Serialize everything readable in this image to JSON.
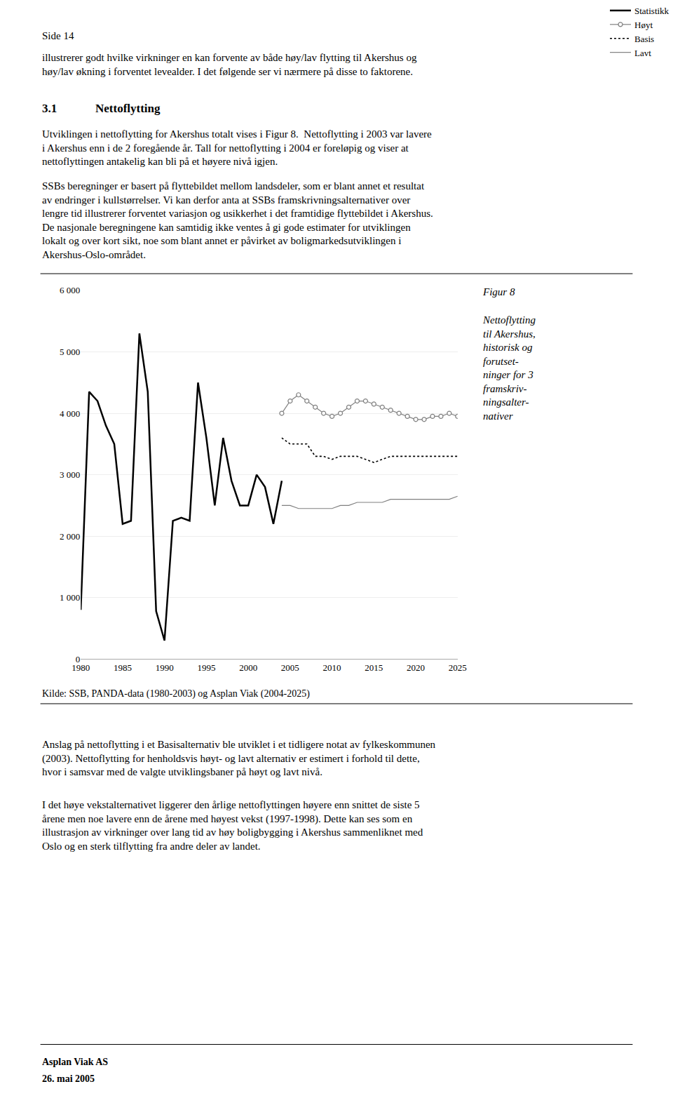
{
  "chart_data": {
    "type": "line",
    "series": [
      {
        "name": "Statistikk",
        "color": "#000000",
        "line_style": "solid",
        "x": [
          1980,
          1981,
          1982,
          1983,
          1984,
          1985,
          1986,
          1987,
          1988,
          1989,
          1990,
          1991,
          1992,
          1993,
          1994,
          1995,
          1996,
          1997,
          1998,
          1999,
          2000,
          2001,
          2002,
          2003,
          2004
        ],
        "values": [
          800,
          4350,
          4200,
          3800,
          3500,
          2200,
          2250,
          5300,
          4350,
          780,
          300,
          2250,
          2300,
          2250,
          4500,
          3600,
          2500,
          3600,
          2900,
          2500,
          2500,
          3000,
          2800,
          2200,
          2900
        ]
      },
      {
        "name": "Høyt",
        "color": "#808080",
        "line_style": "solid",
        "marker": "circle",
        "x": [
          2004,
          2005,
          2006,
          2007,
          2008,
          2009,
          2010,
          2011,
          2012,
          2013,
          2014,
          2015,
          2016,
          2017,
          2018,
          2019,
          2020,
          2021,
          2022,
          2023,
          2024,
          2025
        ],
        "values": [
          4000,
          4200,
          4300,
          4200,
          4100,
          4000,
          3950,
          4000,
          4100,
          4200,
          4200,
          4150,
          4100,
          4050,
          4000,
          3950,
          3900,
          3900,
          3950,
          3950,
          4000,
          3950
        ]
      },
      {
        "name": "Basis",
        "color": "#000000",
        "line_style": "dotted",
        "x": [
          2004,
          2005,
          2006,
          2007,
          2008,
          2009,
          2010,
          2011,
          2012,
          2013,
          2014,
          2015,
          2016,
          2017,
          2018,
          2019,
          2020,
          2021,
          2022,
          2023,
          2024,
          2025
        ],
        "values": [
          3600,
          3500,
          3500,
          3500,
          3300,
          3300,
          3250,
          3300,
          3300,
          3300,
          3250,
          3200,
          3250,
          3300,
          3300,
          3300,
          3300,
          3300,
          3300,
          3300,
          3300,
          3300
        ]
      },
      {
        "name": "Lavt",
        "color": "#808080",
        "line_style": "solid",
        "x": [
          2004,
          2005,
          2006,
          2007,
          2008,
          2009,
          2010,
          2011,
          2012,
          2013,
          2014,
          2015,
          2016,
          2017,
          2018,
          2019,
          2020,
          2021,
          2022,
          2023,
          2024,
          2025
        ],
        "values": [
          2500,
          2500,
          2450,
          2450,
          2450,
          2450,
          2450,
          2500,
          2500,
          2550,
          2550,
          2550,
          2550,
          2600,
          2600,
          2600,
          2600,
          2600,
          2600,
          2600,
          2600,
          2650
        ]
      }
    ],
    "xlim": [
      1980,
      2025
    ],
    "xticks": [
      1980,
      1985,
      1990,
      1995,
      2000,
      2005,
      2010,
      2015,
      2020,
      2025
    ],
    "ylim": [
      0,
      6000
    ],
    "yticks": [
      0,
      {
        "value": 1000,
        "label": "1 000"
      },
      {
        "value": 2000,
        "label": "2 000"
      },
      {
        "value": 3000,
        "label": "3 000"
      },
      {
        "value": 4000,
        "label": "4 000"
      },
      {
        "value": 5000,
        "label": "5 000"
      },
      {
        "value": 6000,
        "label": "6 000"
      }
    ],
    "grid": true,
    "legend": "top right",
    "annotations": [
      "Side 14",
      "illustrerer godt hvilke virkninger en kan forvente av både høy/lav flytting til Akershus og\nhøy/lav økning i forventet levealder. I det følgende ser vi nærmere på disse to faktorene.",
      "3.1",
      "Nettoflytting",
      "Utviklingen i nettoflytting for Akershus totalt vises i Figur 8.  Nettoflytting i 2003 var lavere\ni Akershus enn i de 2 foregående år. Tall for nettoflytting i 2004 er foreløpig og viser at\nnettoflyttingen antakelig kan bli på et høyere nivå igjen.",
      "SSBs beregninger er basert på flyttebildet mellom landsdeler, som er blant annet et resultat\nav endringer i kullstørrelser. Vi kan derfor anta at SSBs framskrivningsalternativer over\nlengre tid illustrerer forventet variasjon og usikkerhet i det framtidige flyttebildet i Akershus.\nDe nasjonale beregningene kan samtidig ikke ventes å gi gode estimater for utviklingen\nlokalt og over kort sikt, noe som blant annet er påvirket av boligmarkedsutviklingen i\nAkershus-Oslo-området.",
      "Figur 8",
      "Nettoflytting\ntil Akershus,\nhistorisk og\nforutset-\nninger for 3\nframskriv-\nningsalter-\nnativer",
      "Kilde: SSB, PANDA-data (1980-2003) og Asplan Viak (2004-2025)",
      "Anslag på nettoflytting i et Basisalternativ ble utviklet i et tidligere notat av fylkeskommunen\n(2003). Nettoflytting for henholdsvis høyt- og lavt alternativ er estimert i forhold til dette,\nhvor i samsvar med de valgte utviklingsbaner på høyt og lavt nivå.",
      "I det høye vekstalternativet liggerer den årlige nettoflyttingen høyere enn snittet de siste 5\nårene men noe lavere enn de årene med høyest vekst (1997-1998). Dette kan ses som en\nillustrasjon av virkninger over lang tid av høy boligbygging i Akershus sammenliknet med\nOslo og en sterk tilflytting fra andre deler av landet.",
      "Asplan Viak AS",
      "26. mai 2005"
    ]
  }
}
